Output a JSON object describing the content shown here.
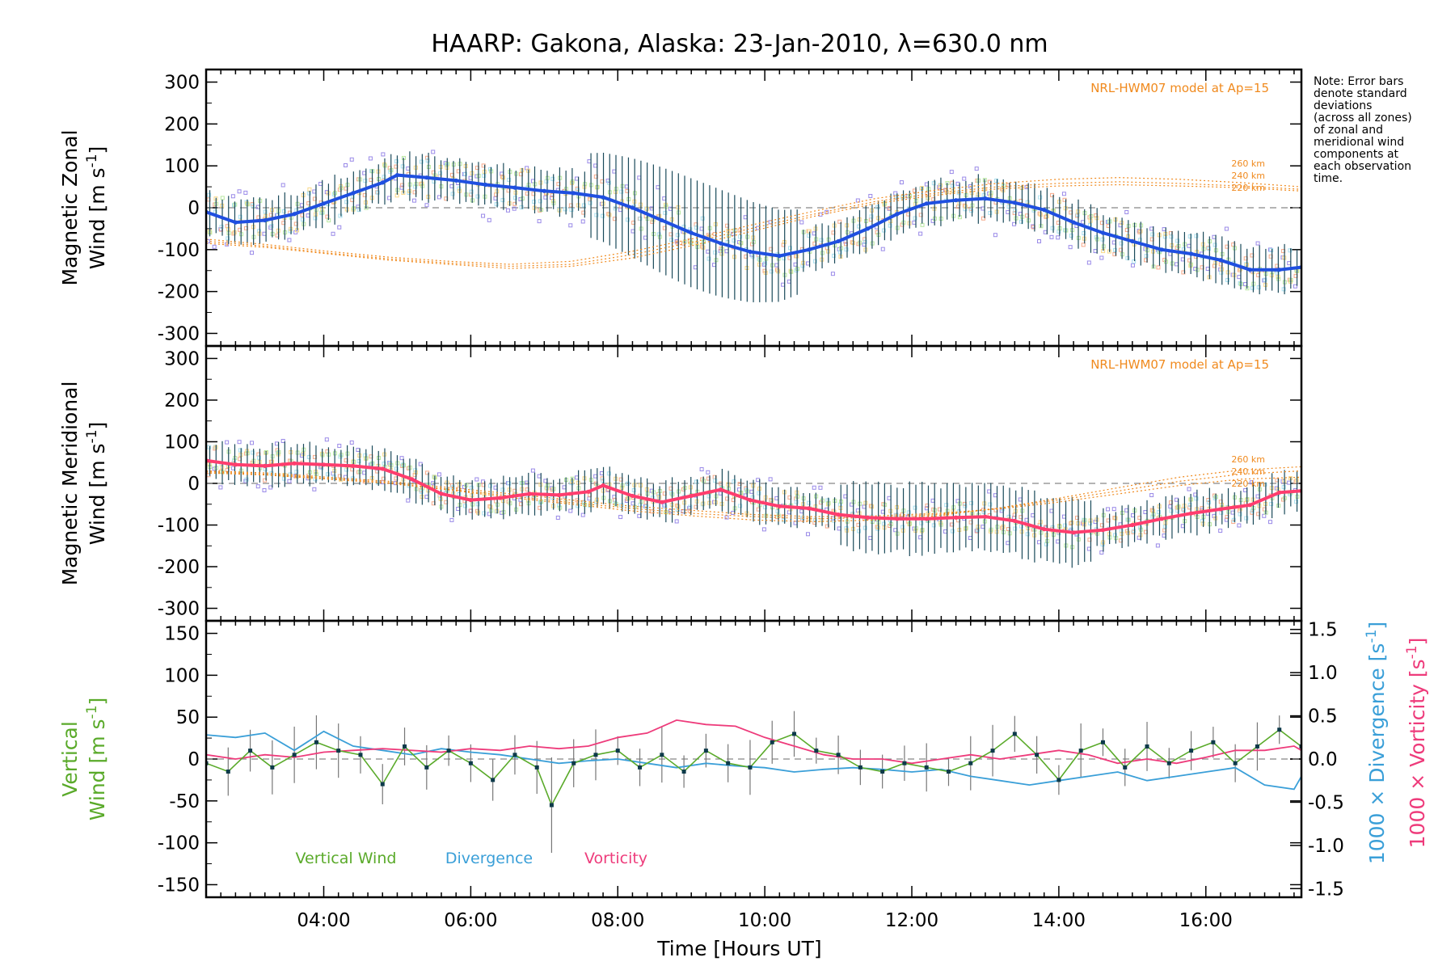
{
  "title": "HAARP: Gakona,  Alaska: 23-Jan-2010, λ=630.0 nm",
  "note": [
    "Note: Error bars",
    "denote standard",
    "deviations",
    "(across all zones)",
    "of zonal and",
    "meridional wind",
    "components at",
    "each observation",
    "time."
  ],
  "colors": {
    "zonal": "#1f4fe0",
    "meridional": "#ff3d6e",
    "vertical": "#5aaa2a",
    "divergence": "#3a9fd8",
    "vorticity": "#ee3b7b",
    "model": "#f08a1e",
    "errorbar": "#1a4a5a",
    "scatter": "#9a8ae8"
  },
  "chart_data": [
    {
      "type": "line",
      "ylabel": [
        "Magnetic Zonal",
        "Wind [m s-1]"
      ],
      "ylim": [
        -330,
        330
      ],
      "yticks": [
        -300,
        -200,
        -100,
        0,
        100,
        200,
        300
      ],
      "xlim": [
        2.4,
        17.3
      ],
      "model_label": "NRL-HWM07 model at Ap=15",
      "model_altitudes": [
        "260 km",
        "240 km",
        "220 km"
      ],
      "series": [
        {
          "x": [
            2.4,
            2.8,
            3.2,
            3.6,
            4.0,
            4.4,
            4.8,
            5.0,
            5.4,
            5.8,
            6.2,
            6.6,
            7.0,
            7.4,
            7.8,
            8.2,
            8.6,
            9.0,
            9.4,
            9.8,
            10.2,
            10.6,
            11.0,
            11.4,
            11.8,
            12.2,
            12.6,
            13.0,
            13.4,
            13.8,
            14.2,
            14.6,
            15.0,
            15.4,
            15.8,
            16.2,
            16.6,
            17.0,
            17.3
          ],
          "y": [
            -10,
            -35,
            -30,
            -15,
            10,
            35,
            60,
            78,
            72,
            65,
            55,
            48,
            40,
            35,
            25,
            0,
            -30,
            -60,
            -85,
            -105,
            -115,
            -100,
            -80,
            -50,
            -15,
            10,
            18,
            22,
            12,
            -5,
            -35,
            -60,
            -80,
            -100,
            -110,
            -125,
            -148,
            -148,
            -142
          ]
        }
      ],
      "model_curves": [
        {
          "y": [
            -85,
            -95,
            -110,
            -125,
            -135,
            -145,
            -140,
            -120,
            -90,
            -55,
            -20,
            10,
            30,
            45,
            52,
            55,
            52,
            48,
            40
          ]
        },
        {
          "y": [
            -80,
            -92,
            -108,
            -122,
            -132,
            -140,
            -135,
            -112,
            -82,
            -48,
            -15,
            15,
            35,
            50,
            58,
            62,
            58,
            52,
            44
          ]
        },
        {
          "y": [
            -75,
            -88,
            -104,
            -118,
            -128,
            -135,
            -128,
            -104,
            -74,
            -40,
            -8,
            22,
            42,
            58,
            68,
            72,
            68,
            60,
            50
          ]
        }
      ]
    },
    {
      "type": "line",
      "ylabel": [
        "Magnetic Meridional",
        "Wind [m s-1]"
      ],
      "ylim": [
        -330,
        330
      ],
      "yticks": [
        -300,
        -200,
        -100,
        0,
        100,
        200,
        300
      ],
      "xlim": [
        2.4,
        17.3
      ],
      "model_label": "NRL-HWM07 model at Ap=15",
      "model_altitudes": [
        "260 km",
        "240 km",
        "220 km"
      ],
      "series": [
        {
          "x": [
            2.4,
            2.8,
            3.2,
            3.6,
            4.0,
            4.4,
            4.8,
            5.2,
            5.6,
            6.0,
            6.4,
            6.8,
            7.2,
            7.6,
            7.8,
            8.2,
            8.6,
            9.0,
            9.4,
            9.8,
            10.2,
            10.6,
            11.0,
            11.4,
            11.8,
            12.2,
            12.6,
            13.0,
            13.4,
            13.8,
            14.2,
            14.6,
            15.0,
            15.4,
            15.8,
            16.2,
            16.6,
            17.0,
            17.3
          ],
          "y": [
            55,
            45,
            42,
            48,
            45,
            42,
            35,
            10,
            -25,
            -40,
            -35,
            -25,
            -28,
            -20,
            -5,
            -30,
            -45,
            -30,
            -15,
            -40,
            -55,
            -60,
            -75,
            -82,
            -85,
            -85,
            -82,
            -80,
            -90,
            -110,
            -118,
            -112,
            -100,
            -85,
            -72,
            -62,
            -52,
            -22,
            -18
          ]
        }
      ],
      "model_curves": [
        {
          "y": [
            30,
            25,
            15,
            5,
            -10,
            -25,
            -40,
            -55,
            -65,
            -75,
            -80,
            -78,
            -72,
            -62,
            -45,
            -25,
            -5,
            10,
            15
          ]
        },
        {
          "y": [
            28,
            22,
            12,
            2,
            -14,
            -30,
            -46,
            -60,
            -72,
            -80,
            -85,
            -82,
            -75,
            -60,
            -40,
            -18,
            5,
            22,
            30
          ]
        },
        {
          "y": [
            25,
            20,
            10,
            0,
            -16,
            -34,
            -50,
            -66,
            -78,
            -88,
            -92,
            -88,
            -78,
            -60,
            -36,
            -10,
            15,
            32,
            40
          ]
        }
      ]
    },
    {
      "type": "line",
      "ylabel": [
        "Vertical",
        "Wind [m s-1]"
      ],
      "ylim": [
        -165,
        165
      ],
      "yticks": [
        -150,
        -100,
        -50,
        0,
        50,
        100,
        150
      ],
      "y2label_div": "1000 × Divergence [s-1]",
      "y2label_vort": "1000 × Vorticity [s-1]",
      "y2lim": [
        -1.6,
        1.6
      ],
      "y2ticks": [
        "-1.5",
        "-1.0",
        "-0.5",
        "0.0",
        "0.5",
        "1.0",
        "1.5"
      ],
      "xlim": [
        2.4,
        17.3
      ],
      "xticks": [
        "04:00",
        "06:00",
        "08:00",
        "10:00",
        "12:00",
        "14:00",
        "16:00"
      ],
      "xtick_values": [
        4,
        6,
        8,
        10,
        12,
        14,
        16
      ],
      "xlabel": "Time [Hours UT]",
      "legend": [
        "Vertical Wind",
        "Divergence",
        "Vorticity"
      ],
      "vertical_wind": {
        "x": [
          2.4,
          2.7,
          3.0,
          3.3,
          3.6,
          3.9,
          4.2,
          4.5,
          4.8,
          5.1,
          5.4,
          5.7,
          6.0,
          6.3,
          6.6,
          6.9,
          7.1,
          7.4,
          7.7,
          8.0,
          8.3,
          8.6,
          8.9,
          9.2,
          9.5,
          9.8,
          10.1,
          10.4,
          10.7,
          11.0,
          11.3,
          11.6,
          11.9,
          12.2,
          12.5,
          12.8,
          13.1,
          13.4,
          13.7,
          14.0,
          14.3,
          14.6,
          14.9,
          15.2,
          15.5,
          15.8,
          16.1,
          16.4,
          16.7,
          17.0,
          17.3
        ],
        "y": [
          -5,
          -15,
          10,
          -10,
          5,
          20,
          10,
          5,
          -30,
          15,
          -10,
          10,
          -5,
          -25,
          5,
          -10,
          -55,
          -5,
          5,
          10,
          -10,
          5,
          -15,
          10,
          -5,
          -10,
          20,
          30,
          10,
          5,
          -10,
          -15,
          -5,
          -10,
          -15,
          -5,
          10,
          30,
          5,
          -25,
          10,
          20,
          -10,
          15,
          -5,
          10,
          20,
          -5,
          15,
          35,
          15
        ]
      },
      "divergence": {
        "x": [
          2.4,
          2.8,
          3.2,
          3.6,
          4.0,
          4.4,
          4.8,
          5.2,
          5.6,
          6.0,
          6.4,
          6.8,
          7.2,
          7.6,
          8.0,
          8.4,
          8.8,
          9.2,
          9.6,
          10.0,
          10.4,
          10.8,
          11.2,
          11.6,
          12.0,
          12.4,
          12.8,
          13.2,
          13.6,
          14.0,
          14.4,
          14.8,
          15.2,
          15.6,
          16.0,
          16.4,
          16.8,
          17.2,
          17.3
        ],
        "y": [
          0.28,
          0.25,
          0.3,
          0.1,
          0.32,
          0.15,
          0.1,
          0.05,
          0.12,
          0.08,
          0.05,
          0.0,
          -0.05,
          -0.02,
          0.0,
          -0.05,
          -0.1,
          -0.05,
          -0.08,
          -0.1,
          -0.15,
          -0.12,
          -0.1,
          -0.12,
          -0.15,
          -0.12,
          -0.2,
          -0.25,
          -0.3,
          -0.25,
          -0.2,
          -0.15,
          -0.25,
          -0.2,
          -0.15,
          -0.1,
          -0.3,
          -0.35,
          -0.2
        ]
      },
      "vorticity": {
        "x": [
          2.4,
          2.8,
          3.2,
          3.6,
          4.0,
          4.4,
          4.8,
          5.2,
          5.6,
          6.0,
          6.4,
          6.8,
          7.2,
          7.6,
          8.0,
          8.4,
          8.8,
          9.2,
          9.6,
          10.0,
          10.4,
          10.8,
          11.2,
          11.6,
          12.0,
          12.4,
          12.8,
          13.2,
          13.6,
          14.0,
          14.4,
          14.8,
          15.2,
          15.6,
          16.0,
          16.4,
          16.8,
          17.2,
          17.3
        ],
        "y": [
          0.05,
          0.0,
          0.05,
          0.02,
          0.08,
          0.1,
          0.12,
          0.1,
          0.08,
          0.12,
          0.1,
          0.15,
          0.12,
          0.15,
          0.25,
          0.3,
          0.45,
          0.4,
          0.38,
          0.25,
          0.15,
          0.05,
          0.0,
          0.0,
          -0.05,
          0.0,
          0.05,
          0.0,
          0.05,
          0.1,
          0.05,
          -0.05,
          0.0,
          -0.05,
          0.02,
          0.1,
          0.1,
          0.15,
          0.1
        ]
      }
    }
  ]
}
